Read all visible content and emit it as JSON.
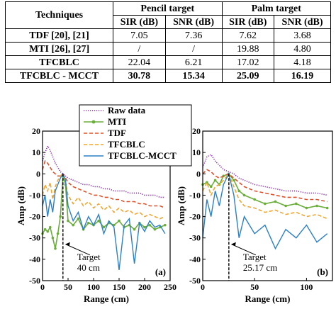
{
  "table": {
    "group_headers": [
      "Techniques",
      "Pencil target",
      "Palm target"
    ],
    "sub_headers": [
      "SIR (dB)",
      "SNR (dB)",
      "SIR (dB)",
      "SNR (dB)"
    ],
    "rows": [
      {
        "technique": "TDF [20], [21]",
        "values": [
          "7.05",
          "7.36",
          "7.62",
          "3.68"
        ],
        "bold": false
      },
      {
        "technique": "MTI [26], [27]",
        "values": [
          "/",
          "/",
          "19.88",
          "4.80"
        ],
        "bold": false
      },
      {
        "technique": "TFCBLC",
        "values": [
          "22.04",
          "6.21",
          "17.02",
          "4.18"
        ],
        "bold": false
      },
      {
        "technique": "TFCBLC - MCCT",
        "values": [
          "30.78",
          "15.34",
          "25.09",
          "16.19"
        ],
        "bold": true
      }
    ]
  },
  "chart_data": [
    {
      "type": "line",
      "panel_label": "(a)",
      "xlabel": "Range (cm)",
      "ylabel": "Amp (dB)",
      "xlim": [
        0,
        250
      ],
      "ylim": [
        -50,
        20
      ],
      "xticks": [
        0,
        50,
        100,
        150,
        200,
        250
      ],
      "yticks": [
        20,
        10,
        0,
        -10,
        -20,
        -30,
        -40,
        -50
      ],
      "legend": [
        "Raw data",
        "MTI",
        "TDF",
        "TFCBLC",
        "TFCBLC-MCCT"
      ],
      "annotation": {
        "text_line1": "Target",
        "text_line2": "40 cm",
        "x": 40
      },
      "series": [
        {
          "name": "Raw data",
          "color": "#8B2BB5",
          "style": "dotted",
          "x": [
            0,
            5,
            10,
            15,
            20,
            25,
            30,
            35,
            40,
            45,
            50,
            60,
            70,
            80,
            90,
            100,
            110,
            120,
            130,
            140,
            150,
            160,
            170,
            180,
            190,
            200,
            210,
            220,
            230,
            240
          ],
          "y": [
            6,
            10,
            13,
            11,
            8,
            5,
            3,
            1,
            0,
            -1,
            -2,
            -3,
            -4,
            -5,
            -5,
            -6,
            -6,
            -7,
            -7,
            -8,
            -8,
            -8,
            -9,
            -9,
            -9,
            -10,
            -10,
            -10,
            -11,
            -11
          ]
        },
        {
          "name": "MTI",
          "color": "#6AAE3A",
          "style": "solid-marker",
          "x": [
            0,
            5,
            10,
            15,
            20,
            25,
            30,
            35,
            40,
            45,
            50,
            60,
            70,
            80,
            90,
            100,
            110,
            120,
            130,
            140,
            150,
            160,
            170,
            180,
            190,
            200,
            210,
            220,
            230,
            240
          ],
          "y": [
            -28,
            -26,
            -27,
            -25,
            -30,
            -35,
            -28,
            -20,
            -1,
            -5,
            -22,
            -24,
            -21,
            -26,
            -23,
            -24,
            -22,
            -25,
            -23,
            -24,
            -22,
            -25,
            -24,
            -26,
            -23,
            -25,
            -24,
            -26,
            -25,
            -24
          ]
        },
        {
          "name": "TDF",
          "color": "#E0502A",
          "style": "dashed",
          "x": [
            0,
            5,
            10,
            15,
            20,
            25,
            30,
            35,
            40,
            45,
            50,
            60,
            70,
            80,
            90,
            100,
            110,
            120,
            130,
            140,
            150,
            160,
            170,
            180,
            190,
            200,
            210,
            220,
            230,
            240
          ],
          "y": [
            2,
            6,
            5,
            3,
            1,
            0,
            -1,
            -1,
            0,
            -2,
            -4,
            -6,
            -7,
            -8,
            -9,
            -10,
            -10,
            -11,
            -11,
            -12,
            -12,
            -13,
            -13,
            -13,
            -14,
            -14,
            -15,
            -15,
            -15,
            -16
          ]
        },
        {
          "name": "TFCBLC",
          "color": "#F2A52E",
          "style": "dashed",
          "x": [
            0,
            5,
            10,
            15,
            20,
            25,
            30,
            35,
            40,
            45,
            50,
            60,
            70,
            80,
            90,
            100,
            110,
            120,
            130,
            140,
            150,
            160,
            170,
            180,
            190,
            200,
            210,
            220,
            230,
            240
          ],
          "y": [
            -10,
            -5,
            -8,
            -4,
            -12,
            -6,
            -3,
            -1,
            0,
            -4,
            -10,
            -14,
            -11,
            -15,
            -13,
            -16,
            -14,
            -17,
            -15,
            -18,
            -16,
            -18,
            -17,
            -19,
            -18,
            -20,
            -19,
            -20,
            -21,
            -20
          ]
        },
        {
          "name": "TFCBLC-MCCT",
          "color": "#2C7FC9",
          "style": "solid",
          "x": [
            0,
            5,
            10,
            15,
            20,
            25,
            30,
            35,
            40,
            45,
            50,
            60,
            70,
            80,
            90,
            100,
            110,
            120,
            130,
            140,
            150,
            160,
            170,
            180,
            190,
            200,
            210,
            220,
            230,
            240
          ],
          "y": [
            -15,
            -10,
            -20,
            -12,
            -18,
            -8,
            -5,
            -2,
            0,
            -3,
            -15,
            -22,
            -18,
            -26,
            -20,
            -24,
            -19,
            -28,
            -22,
            -25,
            -45,
            -24,
            -21,
            -42,
            -23,
            -27,
            -22,
            -25,
            -24,
            -28
          ]
        }
      ]
    },
    {
      "type": "line",
      "panel_label": "(b)",
      "xlabel": "Range (cm)",
      "ylabel": "Amp (dB)",
      "xlim": [
        0,
        125
      ],
      "ylim": [
        -50,
        20
      ],
      "xticks": [
        0,
        50,
        100
      ],
      "yticks": [
        20,
        10,
        0,
        -10,
        -20,
        -30,
        -40,
        -50
      ],
      "annotation": {
        "text_line1": "Target",
        "text_line2": "25.17 cm",
        "x": 25.17
      },
      "series": [
        {
          "name": "Raw data",
          "color": "#8B2BB5",
          "style": "dotted",
          "x": [
            0,
            4,
            8,
            12,
            16,
            20,
            25,
            30,
            35,
            40,
            50,
            60,
            70,
            80,
            90,
            100,
            110,
            120
          ],
          "y": [
            3,
            8,
            9,
            6,
            4,
            2,
            1,
            0,
            -2,
            -3,
            -5,
            -6,
            -7,
            -8,
            -8,
            -9,
            -9,
            -10
          ]
        },
        {
          "name": "MTI",
          "color": "#6AAE3A",
          "style": "solid-marker",
          "x": [
            0,
            4,
            8,
            12,
            16,
            20,
            25,
            30,
            35,
            40,
            50,
            60,
            70,
            80,
            90,
            100,
            110,
            120
          ],
          "y": [
            -5,
            -4,
            -6,
            -3,
            -5,
            -1,
            0,
            -3,
            -8,
            -10,
            -12,
            -14,
            -13,
            -15,
            -14,
            -16,
            -15,
            -16
          ]
        },
        {
          "name": "TDF",
          "color": "#E0502A",
          "style": "dashed",
          "x": [
            0,
            4,
            8,
            12,
            16,
            20,
            25,
            30,
            35,
            40,
            50,
            60,
            70,
            80,
            90,
            100,
            110,
            120
          ],
          "y": [
            0,
            2,
            1,
            -1,
            -2,
            -1,
            0,
            -2,
            -4,
            -6,
            -8,
            -9,
            -10,
            -11,
            -11,
            -12,
            -12,
            -13
          ]
        },
        {
          "name": "TFCBLC",
          "color": "#F2A52E",
          "style": "dashed",
          "x": [
            0,
            4,
            8,
            12,
            16,
            20,
            25,
            30,
            35,
            40,
            50,
            60,
            70,
            80,
            90,
            100,
            110,
            120
          ],
          "y": [
            -8,
            -4,
            -10,
            -6,
            -5,
            -3,
            0,
            -6,
            -12,
            -15,
            -16,
            -18,
            -17,
            -19,
            -18,
            -20,
            -19,
            -21
          ]
        },
        {
          "name": "TFCBLC-MCCT",
          "color": "#2C7FC9",
          "style": "solid",
          "x": [
            0,
            4,
            8,
            12,
            16,
            20,
            25,
            30,
            35,
            40,
            50,
            60,
            70,
            80,
            90,
            100,
            110,
            120
          ],
          "y": [
            -30,
            -12,
            -20,
            -8,
            -15,
            -5,
            0,
            -10,
            -30,
            -20,
            -28,
            -24,
            -35,
            -26,
            -30,
            -24,
            -32,
            -28
          ]
        }
      ]
    }
  ]
}
